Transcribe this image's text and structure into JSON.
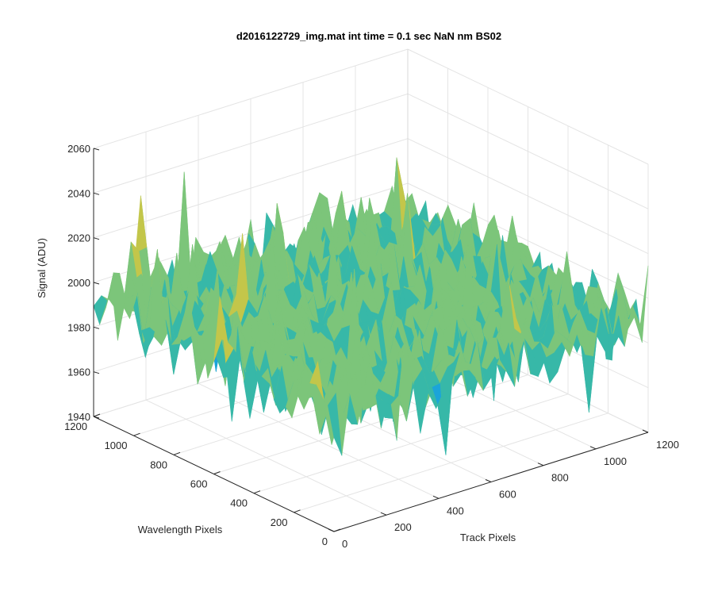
{
  "chart_data": {
    "type": "surface",
    "title": "d2016122729_img.mat int time = 0.1 sec  NaN nm BS02",
    "xlabel": "Track Pixels",
    "ylabel": "Wavelength Pixels",
    "zlabel": "Signal (ADU)",
    "xlim": [
      0,
      1200
    ],
    "ylim": [
      0,
      1200
    ],
    "zlim": [
      1940,
      2060
    ],
    "x_ticks": [
      "0",
      "200",
      "400",
      "600",
      "800",
      "1000",
      "1200"
    ],
    "y_ticks": [
      "0",
      "200",
      "400",
      "600",
      "800",
      "1000",
      "1200"
    ],
    "z_ticks": [
      "1940",
      "1960",
      "1980",
      "2000",
      "2020",
      "2040",
      "2060"
    ],
    "surface_summary": {
      "mean_signal": 1990,
      "typical_min": 1955,
      "typical_max": 2025,
      "peak_max": 2045,
      "dip_min": 1945
    },
    "grid": true,
    "colormap": "parula",
    "colors": [
      "#0072bd",
      "#1ba4d9",
      "#37b8a8",
      "#7cc57a",
      "#c3c64a",
      "#eec23a"
    ]
  }
}
